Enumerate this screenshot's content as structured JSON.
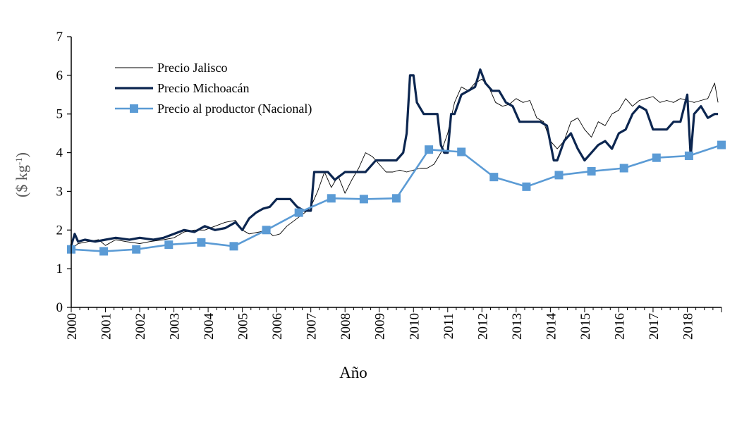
{
  "chart_data": {
    "type": "line",
    "xlabel": "Año",
    "ylabel": "($ kg",
    "ylabel_sup": "-1",
    "ylabel_close": ")",
    "ylim": [
      0,
      7
    ],
    "xlim": [
      2000,
      2019
    ],
    "yticks": [
      "0",
      "1",
      "2",
      "3",
      "4",
      "5",
      "6",
      "7"
    ],
    "xticks": [
      "2000",
      "2001",
      "2002",
      "2003",
      "2004",
      "2005",
      "2006",
      "2007",
      "2008",
      "2009",
      "2010",
      "2011",
      "2012",
      "2013",
      "2014",
      "2015",
      "2016",
      "2017",
      "2018"
    ],
    "grid": false,
    "legend_position": "top-left",
    "series": [
      {
        "name": "Precio Jalisco",
        "color": "#000000",
        "style": "thin line",
        "x": [
          2000.0,
          2000.2,
          2000.5,
          2000.8,
          2001.0,
          2001.3,
          2001.6,
          2002.0,
          2002.3,
          2002.7,
          2003.0,
          2003.3,
          2003.6,
          2003.9,
          2004.2,
          2004.5,
          2004.8,
          2005.0,
          2005.2,
          2005.5,
          2005.7,
          2005.9,
          2006.1,
          2006.3,
          2006.6,
          2006.9,
          2007.0,
          2007.2,
          2007.4,
          2007.6,
          2007.8,
          2008.0,
          2008.2,
          2008.4,
          2008.6,
          2008.8,
          2009.0,
          2009.2,
          2009.4,
          2009.6,
          2009.8,
          2010.0,
          2010.2,
          2010.4,
          2010.6,
          2010.8,
          2011.0,
          2011.2,
          2011.4,
          2011.6,
          2011.8,
          2012.0,
          2012.2,
          2012.4,
          2012.6,
          2012.8,
          2013.0,
          2013.2,
          2013.4,
          2013.6,
          2013.8,
          2014.0,
          2014.2,
          2014.4,
          2014.6,
          2014.8,
          2015.0,
          2015.2,
          2015.4,
          2015.6,
          2015.8,
          2016.0,
          2016.2,
          2016.4,
          2016.6,
          2016.8,
          2017.0,
          2017.2,
          2017.4,
          2017.6,
          2017.8,
          2018.0,
          2018.2,
          2018.4,
          2018.6,
          2018.8,
          2018.9
        ],
        "values": [
          1.5,
          1.65,
          1.7,
          1.75,
          1.6,
          1.75,
          1.7,
          1.65,
          1.7,
          1.75,
          1.8,
          1.95,
          2.0,
          2.0,
          2.1,
          2.2,
          2.25,
          2.0,
          1.9,
          1.95,
          2.0,
          1.85,
          1.9,
          2.1,
          2.3,
          2.5,
          2.6,
          3.0,
          3.5,
          3.1,
          3.4,
          2.95,
          3.3,
          3.6,
          4.0,
          3.9,
          3.7,
          3.5,
          3.5,
          3.55,
          3.5,
          3.55,
          3.6,
          3.6,
          3.7,
          4.0,
          4.5,
          5.3,
          5.7,
          5.6,
          5.8,
          5.9,
          5.7,
          5.3,
          5.2,
          5.25,
          5.4,
          5.3,
          5.35,
          4.9,
          4.8,
          4.3,
          4.1,
          4.3,
          4.8,
          4.9,
          4.6,
          4.4,
          4.8,
          4.7,
          5.0,
          5.1,
          5.4,
          5.2,
          5.35,
          5.4,
          5.45,
          5.3,
          5.35,
          5.3,
          5.4,
          5.35,
          5.3,
          5.35,
          5.4,
          5.8,
          5.3
        ]
      },
      {
        "name": "Precio Michoacán",
        "color": "#0c2650",
        "style": "thick line",
        "x": [
          2000.0,
          2000.1,
          2000.2,
          2000.4,
          2000.7,
          2001.0,
          2001.3,
          2001.7,
          2002.0,
          2002.4,
          2002.7,
          2003.0,
          2003.3,
          2003.6,
          2003.9,
          2004.2,
          2004.5,
          2004.8,
          2005.0,
          2005.2,
          2005.4,
          2005.6,
          2005.8,
          2006.0,
          2006.2,
          2006.4,
          2006.6,
          2006.8,
          2007.0,
          2007.1,
          2007.3,
          2007.5,
          2007.7,
          2008.0,
          2008.3,
          2008.6,
          2008.9,
          2009.2,
          2009.5,
          2009.7,
          2009.8,
          2009.9,
          2010.0,
          2010.1,
          2010.3,
          2010.5,
          2010.7,
          2010.8,
          2010.9,
          2011.0,
          2011.1,
          2011.2,
          2011.4,
          2011.6,
          2011.8,
          2011.95,
          2012.1,
          2012.3,
          2012.5,
          2012.7,
          2012.9,
          2013.1,
          2013.3,
          2013.5,
          2013.7,
          2013.9,
          2014.1,
          2014.2,
          2014.4,
          2014.6,
          2014.8,
          2015.0,
          2015.2,
          2015.4,
          2015.6,
          2015.8,
          2016.0,
          2016.2,
          2016.4,
          2016.6,
          2016.8,
          2017.0,
          2017.2,
          2017.4,
          2017.6,
          2017.8,
          2018.0,
          2018.1,
          2018.2,
          2018.4,
          2018.6,
          2018.8,
          2018.9
        ],
        "values": [
          1.6,
          1.9,
          1.7,
          1.75,
          1.7,
          1.75,
          1.8,
          1.75,
          1.8,
          1.75,
          1.8,
          1.9,
          2.0,
          1.95,
          2.1,
          2.0,
          2.05,
          2.2,
          2.0,
          2.3,
          2.45,
          2.55,
          2.6,
          2.8,
          2.8,
          2.8,
          2.6,
          2.5,
          2.5,
          3.5,
          3.5,
          3.5,
          3.3,
          3.5,
          3.5,
          3.5,
          3.8,
          3.8,
          3.8,
          4.0,
          4.5,
          6.0,
          6.0,
          5.3,
          5.0,
          5.0,
          5.0,
          4.2,
          4.0,
          4.0,
          5.0,
          5.0,
          5.5,
          5.6,
          5.7,
          6.15,
          5.8,
          5.6,
          5.6,
          5.3,
          5.2,
          4.8,
          4.8,
          4.8,
          4.8,
          4.7,
          3.8,
          3.8,
          4.3,
          4.5,
          4.1,
          3.8,
          4.0,
          4.2,
          4.3,
          4.1,
          4.5,
          4.6,
          5.0,
          5.2,
          5.1,
          4.6,
          4.6,
          4.6,
          4.8,
          4.8,
          5.5,
          3.9,
          5.0,
          5.2,
          4.9,
          5.0,
          5.0
        ]
      },
      {
        "name": "Precio al productor (Nacional)",
        "color": "#5b9bd5",
        "style": "line with square markers",
        "x": [
          2000.0,
          2000.95,
          2001.9,
          2002.85,
          2003.8,
          2004.75,
          2005.7,
          2006.65,
          2007.6,
          2008.55,
          2009.5,
          2010.45,
          2011.4,
          2012.35,
          2013.3,
          2014.25,
          2015.2,
          2016.15,
          2017.1,
          2018.05,
          2019.0
        ],
        "values": [
          1.5,
          1.45,
          1.5,
          1.62,
          1.68,
          1.58,
          2.0,
          2.45,
          2.82,
          2.8,
          2.82,
          4.08,
          4.02,
          3.37,
          3.12,
          3.42,
          3.52,
          3.6,
          3.87,
          3.92,
          4.2
        ]
      }
    ]
  }
}
